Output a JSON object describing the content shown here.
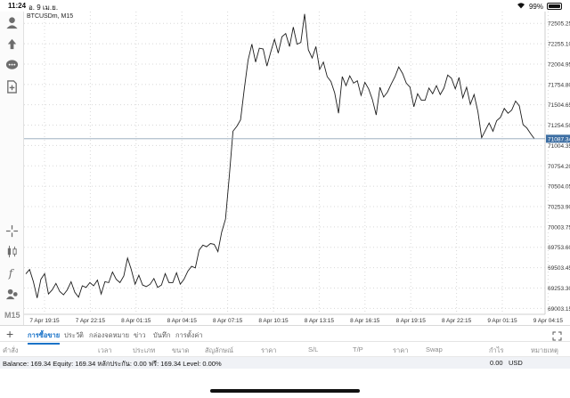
{
  "status_bar": {
    "time": "11:24",
    "date": "อ. 9 เม.ย.",
    "battery": "99%",
    "battery_level": 0.99
  },
  "toolbar": {
    "timeframe": "M15",
    "icons": [
      "account-icon",
      "trade-icon",
      "chat-icon",
      "new-order-icon",
      "crosshair-icon",
      "candles-icon",
      "indicators-icon",
      "objects-icon"
    ]
  },
  "chart": {
    "symbol": "BTCUSDm, M15",
    "current_price_label": "71087.34",
    "line_color": "#1c1c1c",
    "price_line_color": "#8fa3b8",
    "badge_color": "#3e6fa3"
  },
  "chart_data": {
    "type": "line",
    "x_labels": [
      "7 Apr 19:15",
      "7 Apr 22:15",
      "8 Apr 01:15",
      "8 Apr 04:15",
      "8 Apr 07:15",
      "8 Apr 10:15",
      "8 Apr 13:15",
      "8 Apr 16:15",
      "8 Apr 19:15",
      "8 Apr 22:15",
      "9 Apr 01:15",
      "9 Apr 04:15"
    ],
    "y_ticks": [
      "72505.25",
      "72255.10",
      "72004.95",
      "71754.80",
      "71504.65",
      "71254.50",
      "71004.35",
      "70754.20",
      "70504.05",
      "70253.90",
      "70003.75",
      "69753.60",
      "69503.45",
      "69253.30",
      "69003.15"
    ],
    "ylim": [
      68930,
      72650
    ],
    "current_price": 71087.34,
    "values": [
      69427,
      69480,
      69330,
      69130,
      69360,
      69430,
      69180,
      69230,
      69310,
      69210,
      69170,
      69230,
      69330,
      69200,
      69140,
      69280,
      69260,
      69320,
      69280,
      69350,
      69180,
      69330,
      69320,
      69450,
      69360,
      69320,
      69400,
      69620,
      69480,
      69300,
      69410,
      69290,
      69270,
      69300,
      69370,
      69260,
      69290,
      69430,
      69320,
      69320,
      69440,
      69300,
      69360,
      69460,
      69520,
      69500,
      69720,
      69780,
      69760,
      69800,
      69790,
      69700,
      69940,
      70100,
      70620,
      71180,
      71240,
      71320,
      71700,
      72050,
      72250,
      72030,
      72200,
      72190,
      71980,
      72150,
      72310,
      72140,
      72340,
      72380,
      72220,
      72460,
      72250,
      72270,
      72620,
      72180,
      72080,
      72220,
      71940,
      72030,
      71850,
      71790,
      71650,
      71400,
      71850,
      71740,
      71860,
      71770,
      71800,
      71620,
      71780,
      71700,
      71570,
      71380,
      71720,
      71600,
      71660,
      71760,
      71850,
      71970,
      71890,
      71770,
      71720,
      71480,
      71640,
      71560,
      71560,
      71710,
      71640,
      71740,
      71630,
      71710,
      71870,
      71830,
      71700,
      71840,
      71590,
      71720,
      71510,
      71630,
      71420,
      71100,
      71190,
      71280,
      71180,
      71310,
      71350,
      71460,
      71400,
      71440,
      71550,
      71490,
      71260,
      71220,
      71150,
      71087
    ]
  },
  "tabs": {
    "items": [
      "การซื้อขาย",
      "ประวัติ",
      "กล่องจดหมาย",
      "ข่าว",
      "บันทึก",
      "การตั้งค่า"
    ]
  },
  "columns": [
    "คำสั่ง",
    "เวลา",
    "ประเภท",
    "ขนาด",
    "สัญลักษณ์",
    "ราคา",
    "S/L",
    "T/P",
    "ราคา",
    "Swap",
    "กำไร",
    "หมายเหตุ"
  ],
  "balance": {
    "summary": "Balance: 169.34 Equity: 169.34 หลักประกัน: 0.00 ฟรี: 169.34 Level: 0.00%",
    "profit": "0.00",
    "currency": "USD"
  }
}
